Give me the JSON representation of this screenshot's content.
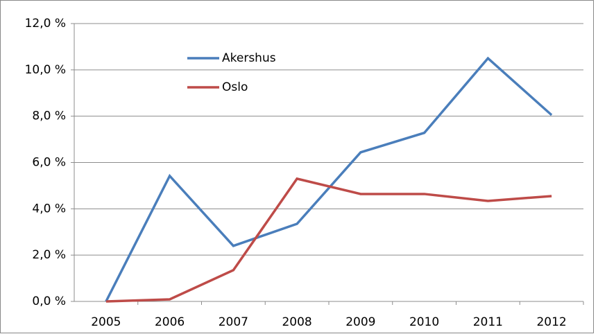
{
  "chart_data": {
    "type": "line",
    "categories": [
      "2005",
      "2006",
      "2007",
      "2008",
      "2009",
      "2010",
      "2011",
      "2012"
    ],
    "series": [
      {
        "name": "Akershus",
        "color": "#4a7ebb",
        "values": [
          0,
          5.42,
          2.4,
          3.35,
          6.44,
          7.28,
          10.5,
          8.05
        ]
      },
      {
        "name": "Oslo",
        "color": "#be4b48",
        "values": [
          0,
          0.09,
          1.35,
          5.3,
          4.64,
          4.64,
          4.34,
          4.55
        ]
      }
    ],
    "ylim": [
      0,
      12
    ],
    "yticks": [
      {
        "value": 0,
        "label": "0,0 %"
      },
      {
        "value": 2,
        "label": "2,0 %"
      },
      {
        "value": 4,
        "label": "4,0 %"
      },
      {
        "value": 6,
        "label": "6,0 %"
      },
      {
        "value": 8,
        "label": "8,0 %"
      },
      {
        "value": 10,
        "label": "10,0 %"
      },
      {
        "value": 12,
        "label": "12,0 %"
      }
    ],
    "grid": true,
    "legend": "upper-left"
  }
}
